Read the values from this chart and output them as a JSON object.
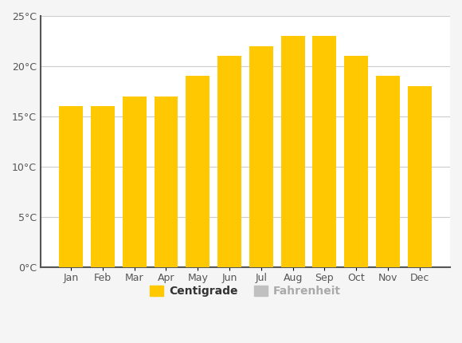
{
  "months": [
    "Jan",
    "Feb",
    "Mar",
    "Apr",
    "May",
    "Jun",
    "Jul",
    "Aug",
    "Sep",
    "Oct",
    "Nov",
    "Dec"
  ],
  "centigrade": [
    16,
    16,
    17,
    17,
    19,
    21,
    22,
    23,
    23,
    21,
    19,
    18
  ],
  "bar_color": "#FFC800",
  "bar_color_fahrenheit": "#C0C0C0",
  "background_color": "#F5F5F5",
  "plot_bg_color": "#FFFFFF",
  "grid_color": "#CCCCCC",
  "left_spine_color": "#555555",
  "bottom_spine_color": "#555555",
  "tick_color": "#555555",
  "ylim": [
    0,
    25
  ],
  "yticks": [
    0,
    5,
    10,
    15,
    20,
    25
  ],
  "ytick_labels": [
    "0°C",
    "5°C",
    "10°C",
    "15°C",
    "20°C",
    "25°C"
  ],
  "legend_centigrade": "Centigrade",
  "legend_fahrenheit": "Fahrenheit",
  "figsize": [
    5.8,
    4.3
  ],
  "dpi": 100,
  "bar_width": 0.75
}
